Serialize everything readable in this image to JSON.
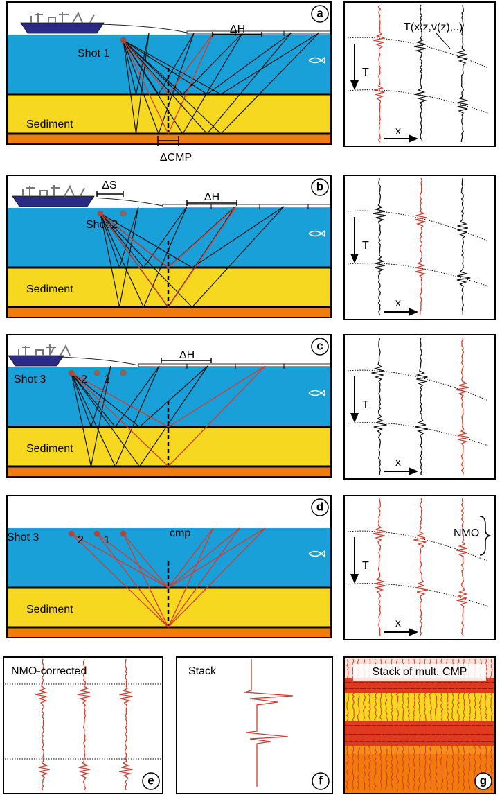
{
  "a": {
    "label": "a",
    "shot": "Shot 1",
    "spread": "ΔH",
    "layer": "Sediment",
    "cmp_spacing": "ΔCMP",
    "traveltime": "T(x,z,v(z),..)",
    "time_axis": "T",
    "offset_axis": "x"
  },
  "b": {
    "label": "b",
    "shot": "Shot 2",
    "shot_spacing": "ΔS",
    "spread": "ΔH",
    "layer": "Sediment",
    "time_axis": "T",
    "offset_axis": "x"
  },
  "c": {
    "label": "c",
    "shot": "Shot 3",
    "shot_2": "2",
    "shot_1": "1",
    "spread": "ΔH",
    "layer": "Sediment",
    "time_axis": "T",
    "offset_axis": "x"
  },
  "d": {
    "label": "d",
    "shot": "Shot 3",
    "shot_2": "2",
    "shot_1": "1",
    "midpoint": "cmp",
    "layer": "Sediment",
    "correction": "NMO",
    "time_axis": "T",
    "offset_axis": "x"
  },
  "e": {
    "label": "e",
    "title": "NMO-corrected"
  },
  "f": {
    "label": "f",
    "title": "Stack"
  },
  "g": {
    "label": "g",
    "title": "Stack of mult. CMP"
  }
}
